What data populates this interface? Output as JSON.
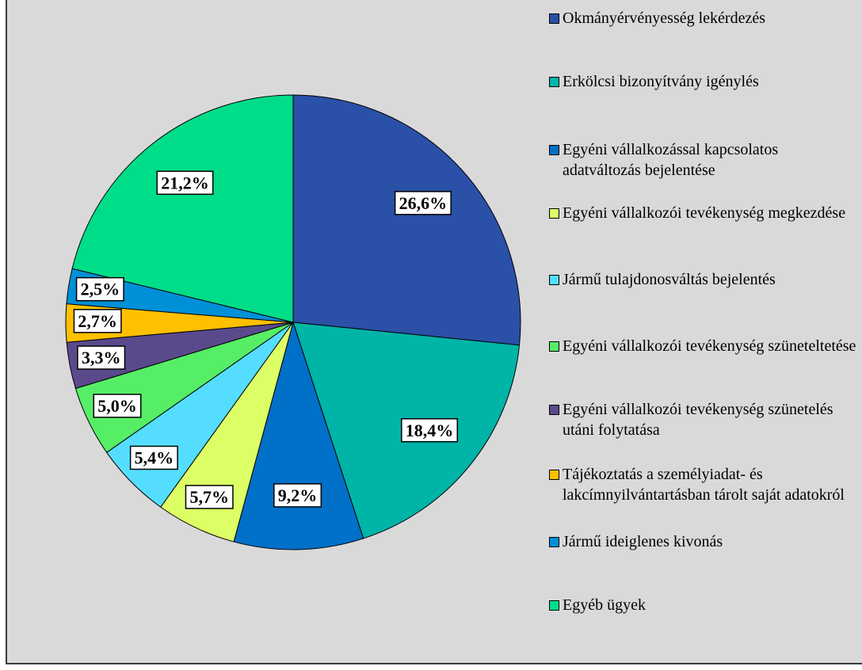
{
  "chart_data": {
    "type": "pie",
    "categories": [
      "Okmányérvényesség lekérdezés",
      "Erkölcsi bizonyítvány igénylés",
      "Egyéni vállalkozással kapcsolatos adatváltozás bejelentése",
      "Egyéni vállalkozói tevékenység megkezdése",
      "Jármű tulajdonosváltás bejelentés",
      "Egyéni vállalkozói tevékenység szüneteltetése",
      "Egyéni vállalkozói tevékenység szünetelés utáni folytatása",
      "Tájékoztatás a személyiadat- és lakcímnyilvántartásban tárolt saját adatokról",
      "Jármű ideiglenes kivonás",
      "Egyéb ügyek"
    ],
    "values": [
      26.6,
      18.4,
      9.2,
      5.7,
      5.4,
      5.0,
      3.3,
      2.7,
      2.5,
      21.2
    ],
    "value_labels": [
      "26,6%",
      "18,4%",
      "9,2%",
      "5,7%",
      "5,4%",
      "5,0%",
      "3,3%",
      "2,7%",
      "2,5%",
      "21,2%"
    ],
    "colors": [
      "#2a50a8",
      "#00b4a8",
      "#0070c8",
      "#ddff66",
      "#55ddff",
      "#55ee66",
      "#5a4a8c",
      "#ffc000",
      "#0090d8",
      "#00dd88"
    ],
    "legend": "right"
  }
}
